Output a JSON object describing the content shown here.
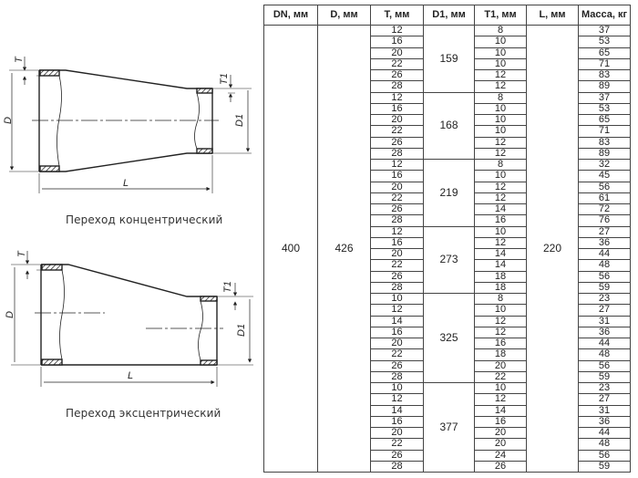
{
  "drawings": {
    "concentric": {
      "caption": "Переход концентрический",
      "labels": {
        "T": "T",
        "D": "D",
        "T1": "T1",
        "D1": "D1",
        "L": "L"
      }
    },
    "eccentric": {
      "caption": "Переход эксцентрический",
      "labels": {
        "T": "T",
        "D": "D",
        "T1": "T1",
        "D1": "D1",
        "L": "L"
      }
    }
  },
  "table": {
    "headers": [
      "DN, мм",
      "D, мм",
      "T, мм",
      "D1, мм",
      "T1, мм",
      "L, мм",
      "Масса, кг"
    ],
    "dn": "400",
    "d": "426",
    "l": "220",
    "groups": [
      {
        "d1": "159",
        "rows": [
          [
            "12",
            "8",
            "37"
          ],
          [
            "16",
            "10",
            "53"
          ],
          [
            "20",
            "10",
            "65"
          ],
          [
            "22",
            "10",
            "71"
          ],
          [
            "26",
            "12",
            "83"
          ],
          [
            "28",
            "12",
            "89"
          ]
        ]
      },
      {
        "d1": "168",
        "rows": [
          [
            "12",
            "8",
            "37"
          ],
          [
            "16",
            "10",
            "53"
          ],
          [
            "20",
            "10",
            "65"
          ],
          [
            "22",
            "10",
            "71"
          ],
          [
            "26",
            "12",
            "83"
          ],
          [
            "28",
            "12",
            "89"
          ]
        ]
      },
      {
        "d1": "219",
        "rows": [
          [
            "12",
            "8",
            "32"
          ],
          [
            "16",
            "10",
            "45"
          ],
          [
            "20",
            "12",
            "56"
          ],
          [
            "22",
            "12",
            "61"
          ],
          [
            "26",
            "14",
            "72"
          ],
          [
            "28",
            "16",
            "76"
          ]
        ]
      },
      {
        "d1": "273",
        "rows": [
          [
            "12",
            "10",
            "27"
          ],
          [
            "16",
            "12",
            "36"
          ],
          [
            "20",
            "14",
            "44"
          ],
          [
            "22",
            "14",
            "48"
          ],
          [
            "26",
            "18",
            "56"
          ],
          [
            "28",
            "18",
            "59"
          ]
        ]
      },
      {
        "d1": "325",
        "rows": [
          [
            "10",
            "8",
            "23"
          ],
          [
            "12",
            "10",
            "27"
          ],
          [
            "14",
            "12",
            "31"
          ],
          [
            "16",
            "12",
            "36"
          ],
          [
            "20",
            "16",
            "44"
          ],
          [
            "22",
            "18",
            "48"
          ],
          [
            "26",
            "20",
            "56"
          ],
          [
            "28",
            "22",
            "59"
          ]
        ]
      },
      {
        "d1": "377",
        "rows": [
          [
            "10",
            "10",
            "23"
          ],
          [
            "12",
            "12",
            "27"
          ],
          [
            "14",
            "14",
            "31"
          ],
          [
            "16",
            "16",
            "36"
          ],
          [
            "20",
            "20",
            "44"
          ],
          [
            "22",
            "20",
            "48"
          ],
          [
            "26",
            "24",
            "56"
          ],
          [
            "28",
            "26",
            "59"
          ]
        ]
      }
    ]
  }
}
